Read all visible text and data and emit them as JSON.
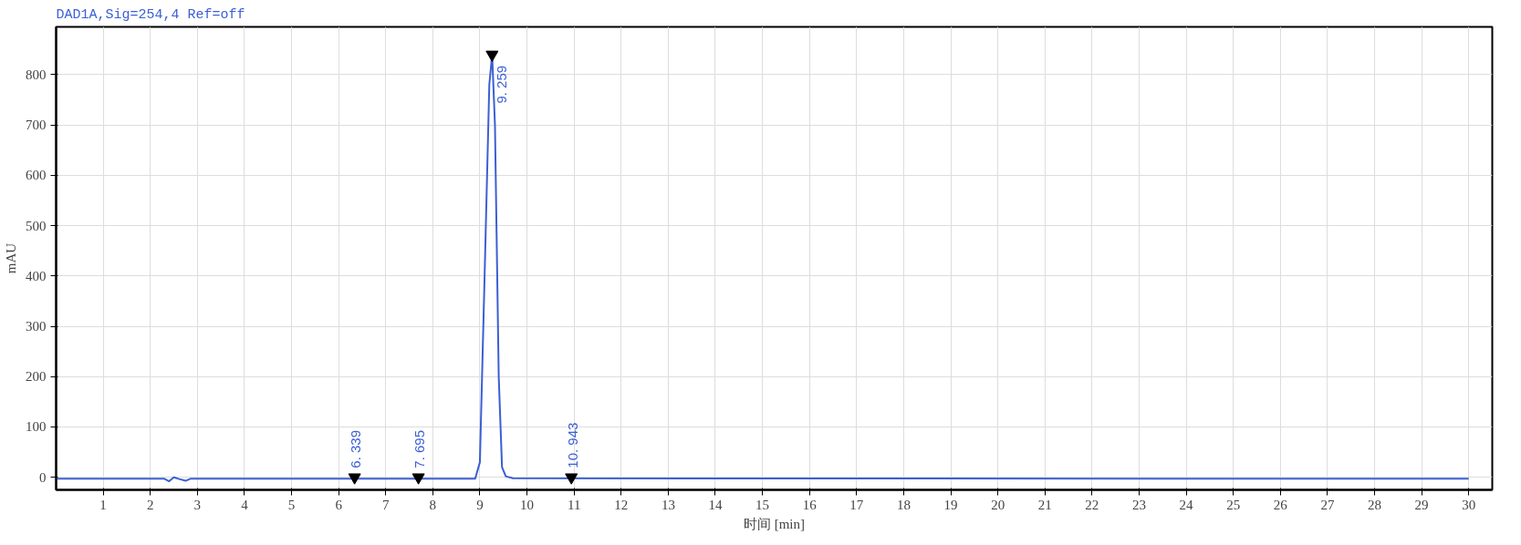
{
  "chart_data": {
    "type": "line",
    "title": "DAD1A,Sig=254,4   Ref=off",
    "xlabel": "时间 [min]",
    "ylabel": "mAU",
    "x": [
      0,
      2.3,
      2.4,
      2.5,
      2.6,
      2.75,
      2.85,
      8.9,
      9.0,
      9.1,
      9.2,
      9.26,
      9.32,
      9.4,
      9.47,
      9.55,
      9.7,
      30
    ],
    "series": [
      {
        "color": "#3b5fd4",
        "values": [
          -3,
          -3,
          -8,
          0,
          -3,
          -7,
          -3,
          -3,
          30,
          400,
          780,
          840,
          700,
          200,
          20,
          2,
          -2,
          -3
        ]
      }
    ],
    "annotations": [
      {
        "text": "6. 339",
        "x": 6.339,
        "y": 0
      },
      {
        "text": "7. 695",
        "x": 7.695,
        "y": 0
      },
      {
        "text": "9. 259",
        "x": 9.259,
        "y": 840
      },
      {
        "text": "10. 943",
        "x": 10.943,
        "y": 0
      }
    ],
    "xlim": [
      0,
      30.5
    ],
    "ylim": [
      -25,
      895
    ],
    "xticks": [
      1,
      2,
      3,
      4,
      5,
      6,
      7,
      8,
      9,
      10,
      11,
      12,
      13,
      14,
      15,
      16,
      17,
      18,
      19,
      20,
      21,
      22,
      23,
      24,
      25,
      26,
      27,
      28,
      29,
      30
    ],
    "yticks": [
      0,
      100,
      200,
      300,
      400,
      500,
      600,
      700,
      800
    ],
    "grid": true,
    "marker": "none",
    "line_style": "solid"
  }
}
